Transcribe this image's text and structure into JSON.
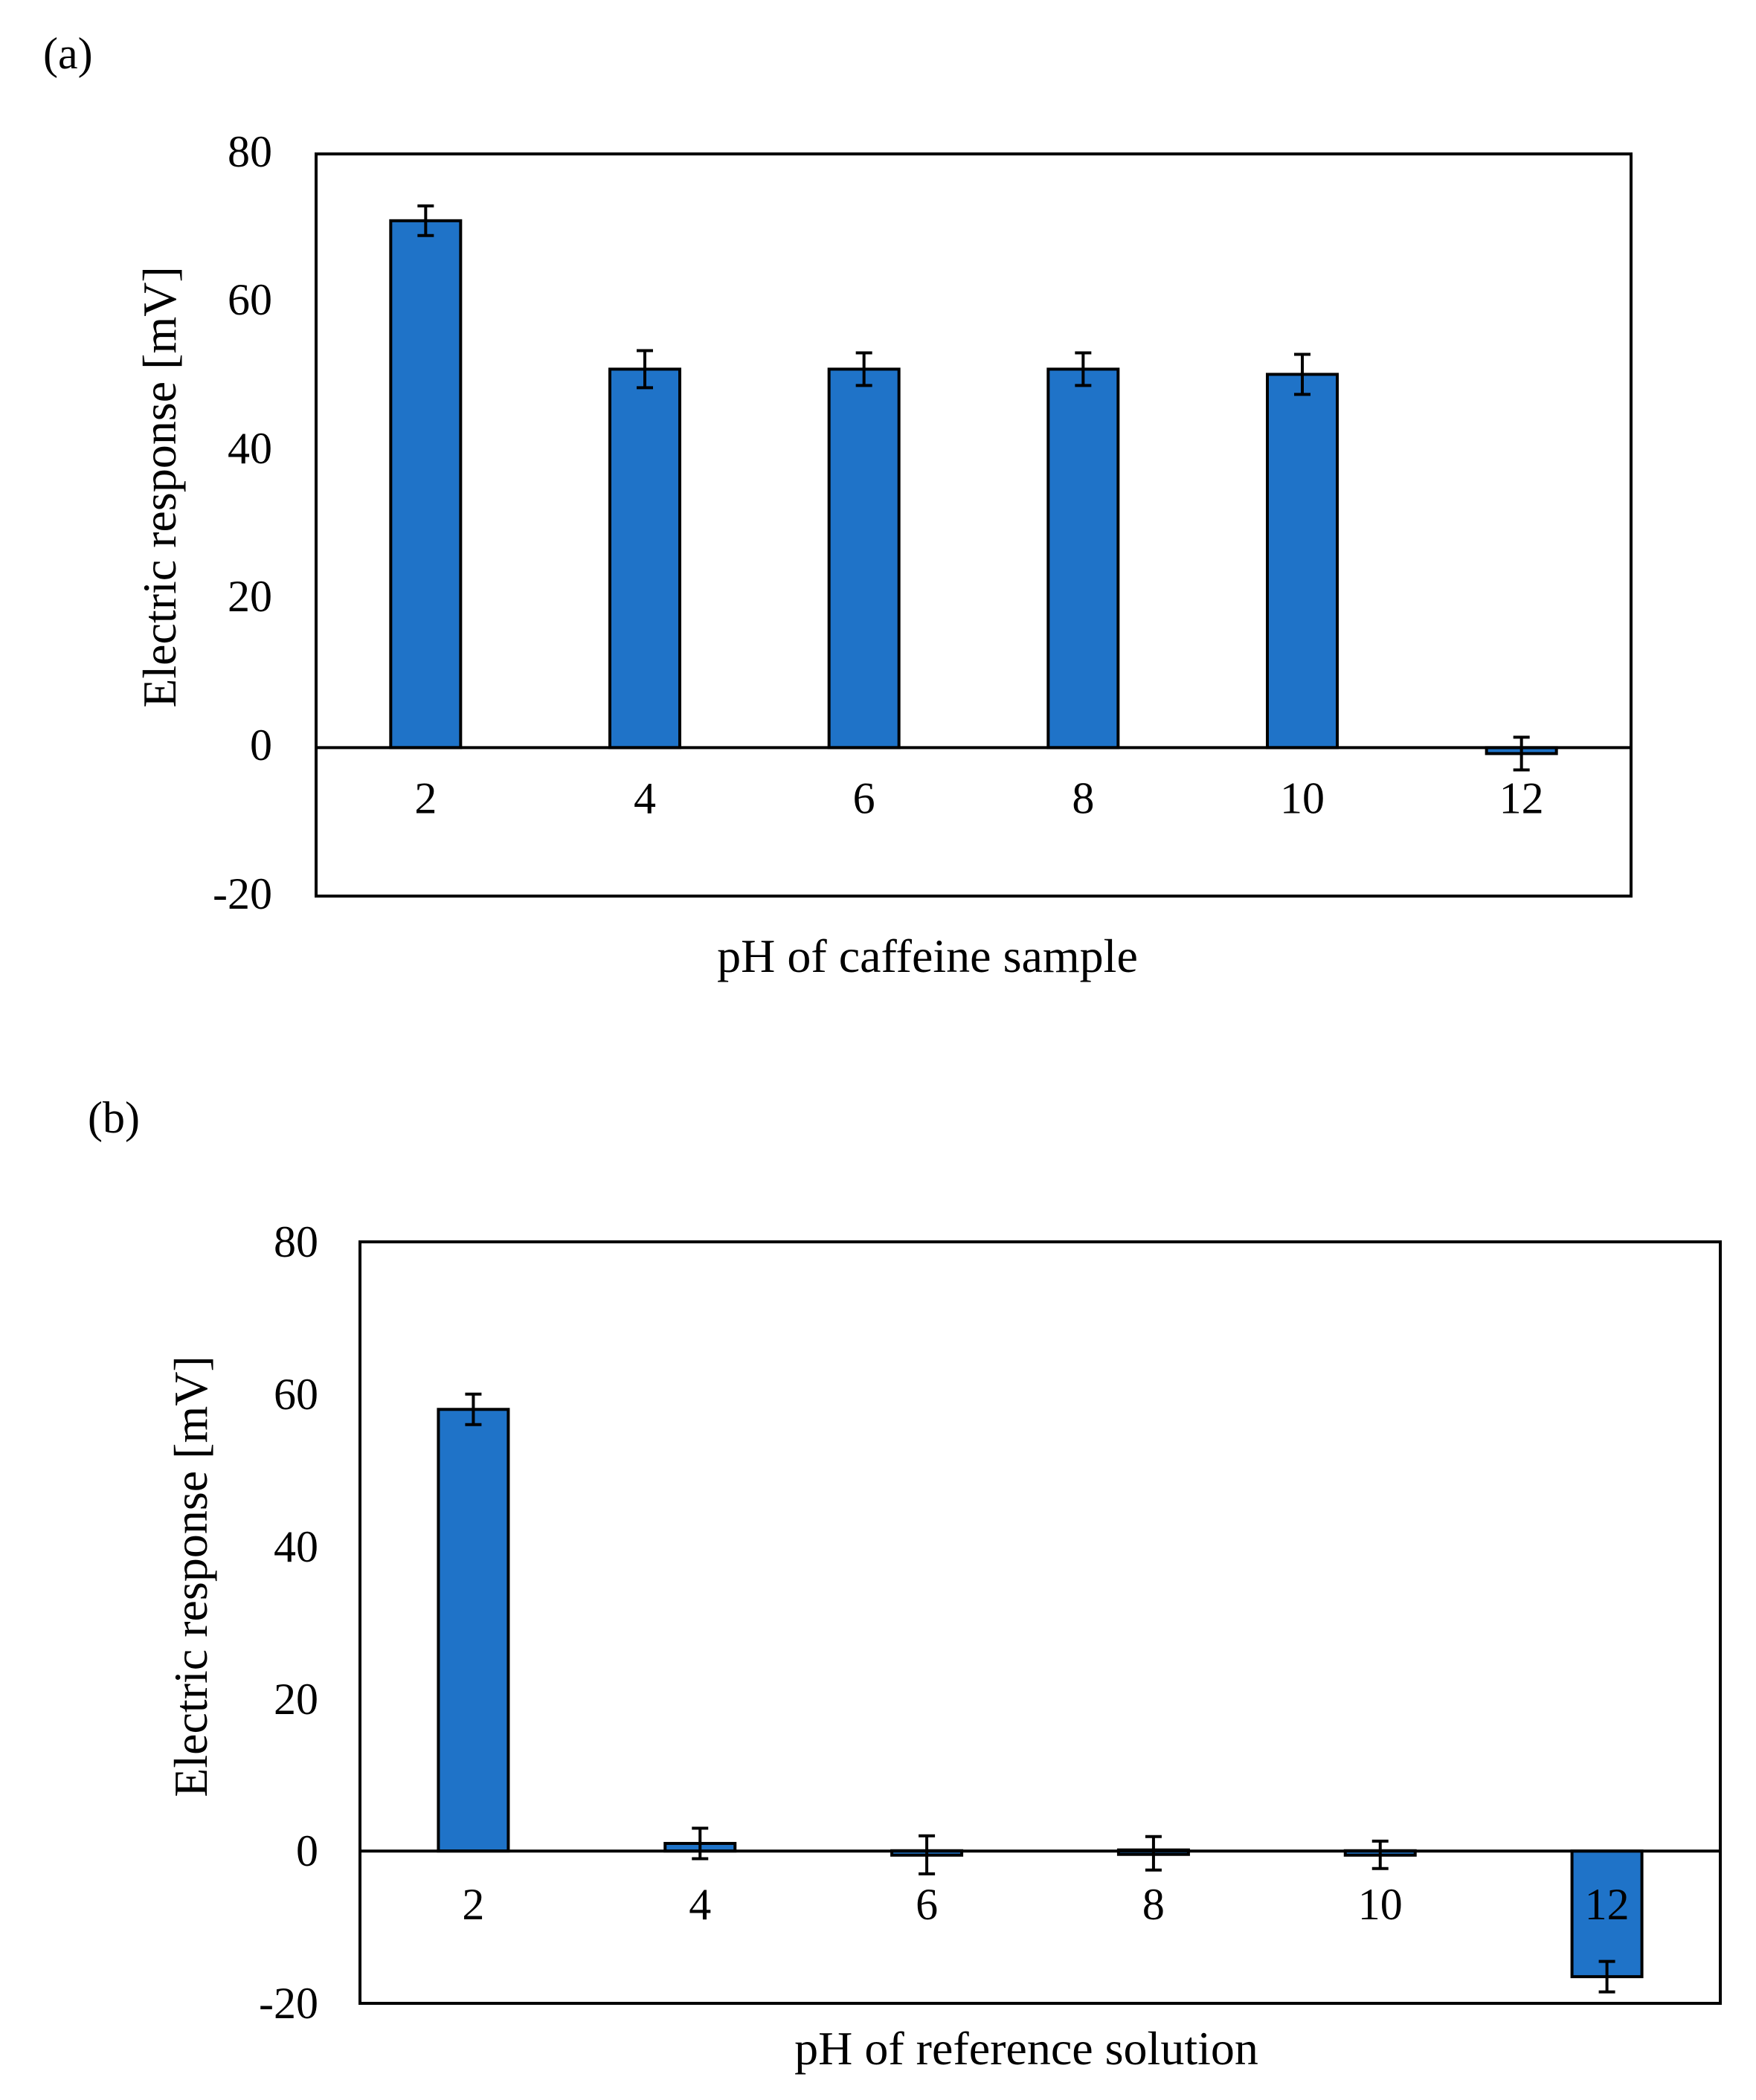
{
  "colors": {
    "bar": "#1f73c8",
    "outline": "#000000",
    "background": "#ffffff"
  },
  "chart_data": [
    {
      "type": "bar",
      "panel_label": "(a)",
      "title": "",
      "xlabel": "pH of caffeine sample",
      "ylabel": "Electric response [mV]",
      "categories": [
        "2",
        "4",
        "6",
        "8",
        "10",
        "12"
      ],
      "values": [
        71,
        51,
        51,
        51,
        50.3,
        -0.8
      ],
      "errors": [
        2,
        2.5,
        2.2,
        2.2,
        2.7,
        2.2
      ],
      "ylim": [
        -20,
        80
      ],
      "yticks": [
        "80",
        "60",
        "40",
        "20",
        "0",
        "-20"
      ],
      "ytick_values": [
        80,
        60,
        40,
        20,
        0,
        -20
      ],
      "grid": false
    },
    {
      "type": "bar",
      "panel_label": "(b)",
      "title": "",
      "xlabel": "pH of reference solution",
      "ylabel": "Electric response [mV]",
      "categories": [
        "2",
        "4",
        "6",
        "8",
        "10",
        "12"
      ],
      "values": [
        58,
        1,
        -0.5,
        -0.3,
        -0.5,
        -16.5
      ],
      "errors": [
        2,
        2,
        2.5,
        2.2,
        1.8,
        2
      ],
      "ylim": [
        -20,
        80
      ],
      "yticks": [
        "80",
        "60",
        "40",
        "20",
        "0",
        "-20"
      ],
      "ytick_values": [
        80,
        60,
        40,
        20,
        0,
        -20
      ],
      "grid": false
    }
  ]
}
